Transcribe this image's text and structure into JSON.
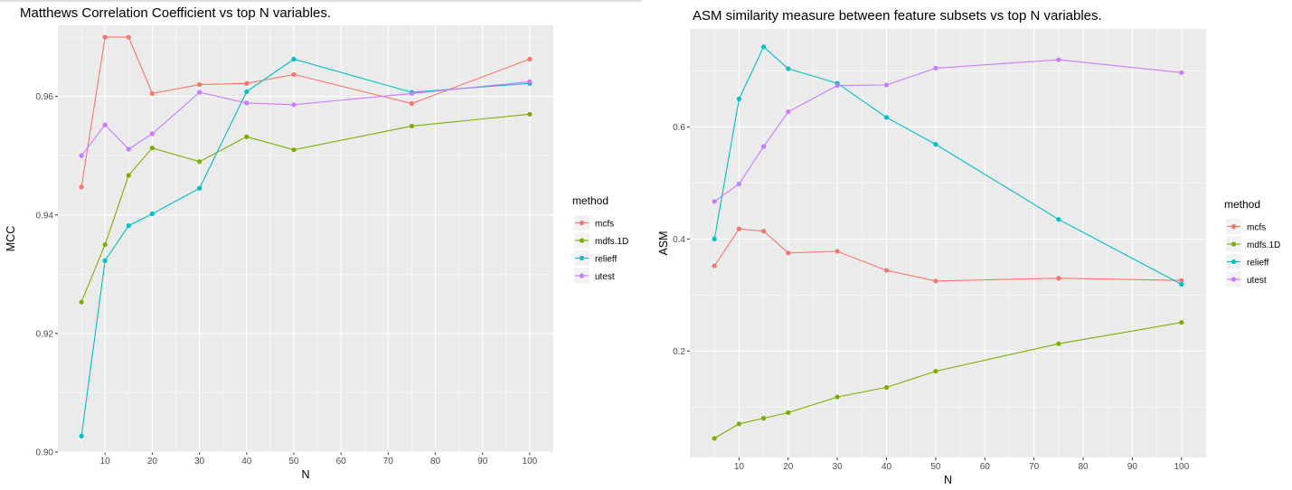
{
  "colors": {
    "mcfs": "#F8766D",
    "mdfs.1D": "#7CAE00",
    "relieff": "#00BFC4",
    "utest": "#C77CFF",
    "panel": "#EBEBEB",
    "grid": "#FFFFFF"
  },
  "legend": {
    "title": "method",
    "entries": [
      "mcfs",
      "mdfs.1D",
      "relieff",
      "utest"
    ]
  },
  "chart_data": [
    {
      "type": "line",
      "title": "Matthews Correlation Coefficient vs top N variables.",
      "xlabel": "N",
      "ylabel": "MCC",
      "xlim": [
        0,
        105
      ],
      "ylim": [
        0.9,
        0.972
      ],
      "x_ticks": [
        10,
        20,
        30,
        40,
        50,
        60,
        70,
        80,
        90,
        100
      ],
      "x_tick_labels": [
        "10",
        "20",
        "30",
        "40",
        "50",
        "60",
        "70",
        "80",
        "90",
        "100"
      ],
      "y_ticks": [
        0.9,
        0.92,
        0.94,
        0.96
      ],
      "y_tick_labels": [
        "0.90",
        "0.92",
        "0.94",
        "0.96"
      ],
      "grid": true,
      "legend_position": "right",
      "x": [
        5,
        10,
        15,
        20,
        30,
        40,
        50,
        75,
        100
      ],
      "series": [
        {
          "name": "mcfs",
          "values": [
            0.9447,
            0.97,
            0.97,
            0.9605,
            0.962,
            0.9622,
            0.9637,
            0.9588,
            0.9663
          ]
        },
        {
          "name": "mdfs.1D",
          "values": [
            0.9253,
            0.935,
            0.9467,
            0.9513,
            0.949,
            0.9532,
            0.951,
            0.955,
            0.957
          ]
        },
        {
          "name": "relieff",
          "values": [
            0.9027,
            0.9323,
            0.9382,
            0.9402,
            0.9445,
            0.9608,
            0.9663,
            0.9607,
            0.9622
          ]
        },
        {
          "name": "utest",
          "values": [
            0.95,
            0.9552,
            0.9511,
            0.9537,
            0.9607,
            0.9589,
            0.9586,
            0.9605,
            0.9625
          ]
        }
      ]
    },
    {
      "type": "line",
      "title": "ASM similarity measure between feature subsets vs top N variables.",
      "xlabel": "N",
      "ylabel": "ASM",
      "xlim": [
        0,
        105
      ],
      "ylim": [
        0.01,
        0.775
      ],
      "x_ticks": [
        10,
        20,
        30,
        40,
        50,
        60,
        70,
        80,
        90,
        100
      ],
      "x_tick_labels": [
        "10",
        "20",
        "30",
        "40",
        "50",
        "60",
        "70",
        "80",
        "90",
        "100"
      ],
      "y_ticks": [
        0.2,
        0.4,
        0.6
      ],
      "y_tick_labels": [
        "0.2",
        "0.4",
        "0.6"
      ],
      "grid": true,
      "legend_position": "right",
      "x": [
        5,
        10,
        15,
        20,
        30,
        40,
        50,
        75,
        100
      ],
      "series": [
        {
          "name": "mcfs",
          "values": [
            0.352,
            0.418,
            0.414,
            0.375,
            0.378,
            0.344,
            0.325,
            0.33,
            0.326
          ]
        },
        {
          "name": "mdfs.1D",
          "values": [
            0.044,
            0.07,
            0.08,
            0.09,
            0.118,
            0.135,
            0.164,
            0.213,
            0.251
          ]
        },
        {
          "name": "relieff",
          "values": [
            0.4,
            0.65,
            0.743,
            0.704,
            0.678,
            0.617,
            0.569,
            0.435,
            0.319
          ]
        },
        {
          "name": "utest",
          "values": [
            0.467,
            0.498,
            0.565,
            0.627,
            0.674,
            0.675,
            0.705,
            0.72,
            0.697
          ]
        }
      ]
    }
  ]
}
